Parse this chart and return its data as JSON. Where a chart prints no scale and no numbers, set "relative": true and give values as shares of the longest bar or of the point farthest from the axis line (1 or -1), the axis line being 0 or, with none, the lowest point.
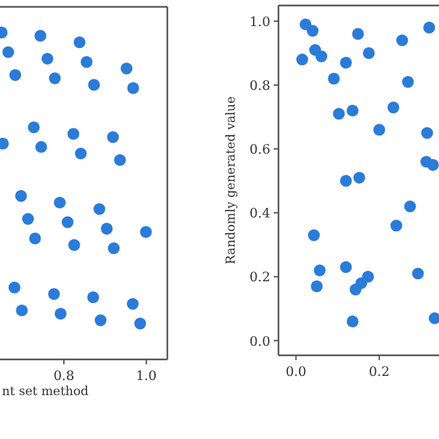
{
  "chart_data": [
    {
      "type": "scatter",
      "xlabel": "nt set method",
      "relative": true,
      "marker": "circle",
      "xlim": [
        0.645,
        1.051
      ],
      "xticks": [
        {
          "value": 0.8,
          "label": "0.8"
        },
        {
          "value": 1.0,
          "label": "1.0"
        }
      ],
      "series": [
        {
          "color": "#2b7bd9",
          "x": [
            0.649,
            0.743,
            0.838,
            0.665,
            0.76,
            0.855,
            0.952,
            0.682,
            0.778,
            0.873,
            0.968,
            0.727,
            0.823,
            0.919,
            0.652,
            0.745,
            0.841,
            0.936,
            0.696,
            0.79,
            0.886,
            0.713,
            0.809,
            0.904,
            0.999,
            0.73,
            0.825,
            0.921,
            0.68,
            0.776,
            0.871,
            0.967,
            0.698,
            0.792,
            0.889,
            0.985
          ],
          "values": [
            1.0,
            0.99,
            0.97,
            0.94,
            0.92,
            0.91,
            0.89,
            0.87,
            0.86,
            0.84,
            0.83,
            0.71,
            0.69,
            0.68,
            0.66,
            0.65,
            0.63,
            0.61,
            0.5,
            0.48,
            0.46,
            0.43,
            0.42,
            0.4,
            0.39,
            0.37,
            0.35,
            0.34,
            0.22,
            0.2,
            0.19,
            0.17,
            0.15,
            0.14,
            0.12,
            0.11
          ]
        }
      ]
    },
    {
      "type": "scatter",
      "ylabel": "Randomly generated value",
      "marker": "circle",
      "xlim": [
        -0.042,
        0.36
      ],
      "ylim": [
        -0.046,
        1.049
      ],
      "xticks": [
        {
          "value": 0,
          "label": "0.0"
        },
        {
          "value": 0.2,
          "label": "0.2"
        }
      ],
      "yticks": [
        {
          "value": 0,
          "label": "0.0"
        },
        {
          "value": 0.2,
          "label": "0.2"
        },
        {
          "value": 0.4,
          "label": "0.4"
        },
        {
          "value": 0.6,
          "label": "0.6"
        },
        {
          "value": 0.8,
          "label": "0.8"
        },
        {
          "value": 1.0,
          "label": "1.0"
        }
      ],
      "series": [
        {
          "color": "#2b7bd9",
          "x": [
            0.023,
            0.04,
            0.015,
            0.046,
            0.061,
            0.149,
            0.255,
            0.32,
            0.12,
            0.175,
            0.091,
            0.269,
            0.103,
            0.136,
            0.234,
            0.2,
            0.315,
            0.313,
            0.329,
            0.12,
            0.152,
            0.274,
            0.241,
            0.043,
            0.057,
            0.05,
            0.12,
            0.173,
            0.157,
            0.143,
            0.293,
            0.136,
            0.333
          ],
          "values": [
            0.99,
            0.97,
            0.88,
            0.91,
            0.89,
            0.96,
            0.94,
            0.98,
            0.87,
            0.9,
            0.82,
            0.81,
            0.71,
            0.72,
            0.73,
            0.66,
            0.65,
            0.56,
            0.55,
            0.5,
            0.51,
            0.42,
            0.36,
            0.33,
            0.22,
            0.17,
            0.23,
            0.2,
            0.18,
            0.16,
            0.21,
            0.06,
            0.07
          ]
        }
      ]
    }
  ]
}
